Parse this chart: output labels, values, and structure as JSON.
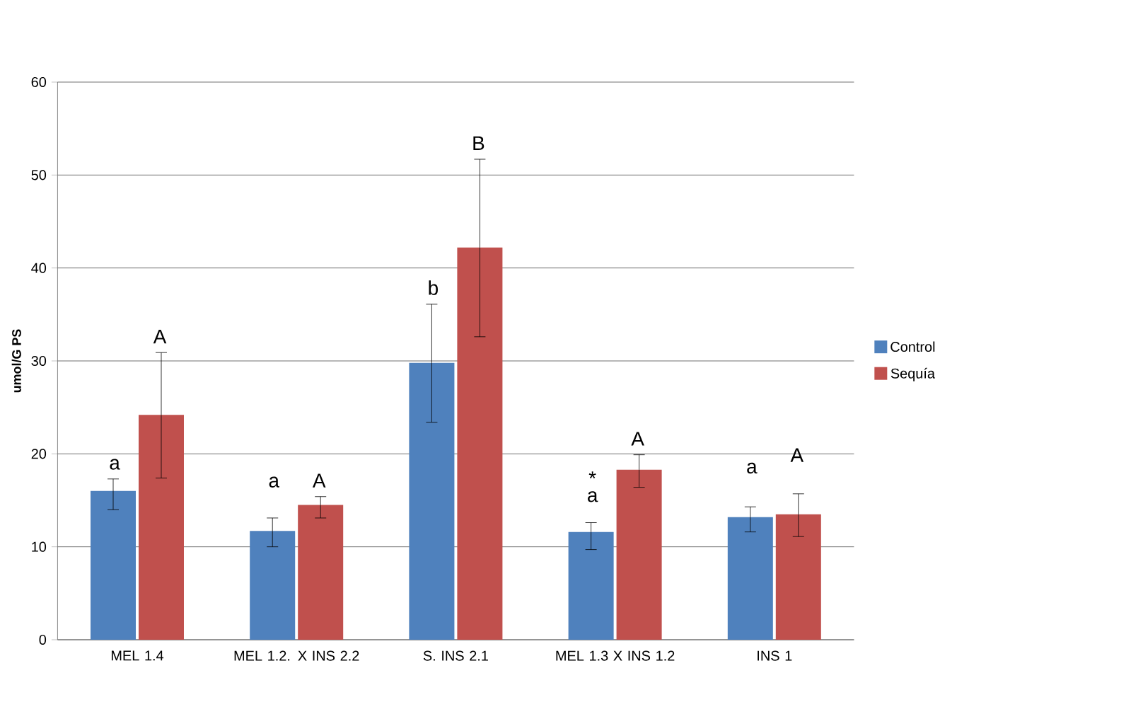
{
  "chart_data": {
    "type": "bar",
    "ylabel": "umol/G PS",
    "categories": [
      "MEL 1.4",
      "MEL 1.2. X INS 2.2",
      "S. INS 2.1",
      "MEL 1.3 X INS 1.2",
      "INS 1"
    ],
    "series": [
      {
        "name": "Control",
        "color": "#4f81bd",
        "values": [
          16.0,
          11.7,
          29.8,
          11.6,
          13.2
        ],
        "errors": [
          [
            14.0,
            17.3
          ],
          [
            10.0,
            13.1
          ],
          [
            23.4,
            36.1
          ],
          [
            9.7,
            12.6
          ],
          [
            11.6,
            14.3
          ]
        ]
      },
      {
        "name": "Sequía",
        "color": "#c0504d",
        "values": [
          24.2,
          14.5,
          42.2,
          18.3,
          13.5
        ],
        "errors": [
          [
            17.4,
            30.9
          ],
          [
            13.1,
            15.4
          ],
          [
            32.6,
            51.7
          ],
          [
            16.4,
            19.9
          ],
          [
            11.1,
            15.7
          ]
        ]
      }
    ],
    "ylim": [
      0,
      60
    ],
    "yticks": [
      0,
      10,
      20,
      30,
      40,
      50,
      60
    ],
    "grid": "y",
    "legend": "right",
    "annotations": [
      "a",
      "A",
      "a",
      "A",
      "b",
      "B",
      "*",
      "a",
      "A",
      "a",
      "A"
    ]
  }
}
